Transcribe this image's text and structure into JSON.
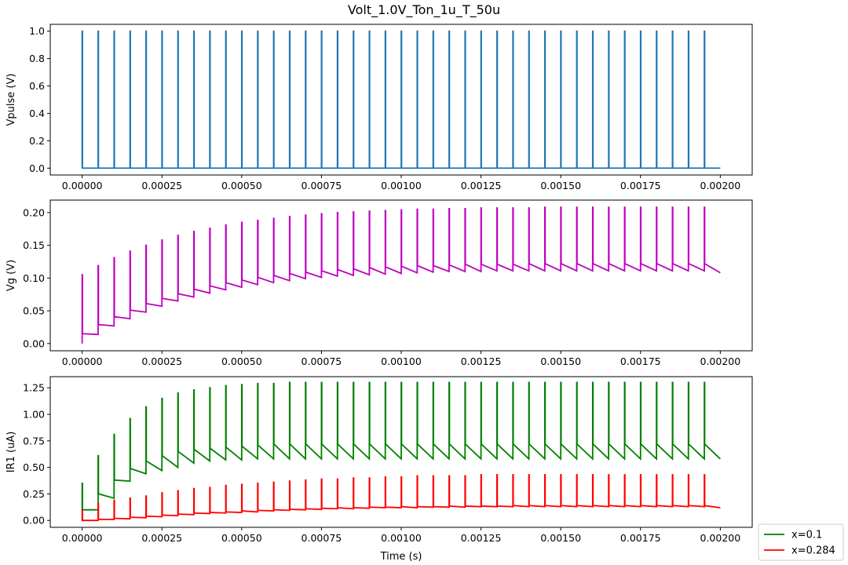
{
  "chart_data": {
    "title": "Volt_1.0V_Ton_1u_T_50u",
    "type": "line",
    "pulse_period": 5e-05,
    "pulse_width": 1e-06,
    "t_end": 0.002,
    "x_ticks": [
      "0.00000",
      "0.00025",
      "0.00050",
      "0.00075",
      "0.00100",
      "0.00125",
      "0.00150",
      "0.00175",
      "0.00200"
    ],
    "x_tick_values": [
      0,
      0.00025,
      0.0005,
      0.00075,
      0.001,
      0.00125,
      0.0015,
      0.00175,
      0.002
    ],
    "xlabel": "Time (s)",
    "xlim": [
      -0.0001,
      0.0021
    ],
    "panels": [
      {
        "ylabel": "Vpulse (V)",
        "ylim": [
          -0.05,
          1.05
        ],
        "y_ticks": [
          "0.0",
          "0.2",
          "0.4",
          "0.6",
          "0.8",
          "1.0"
        ],
        "y_tick_values": [
          0,
          0.2,
          0.4,
          0.6,
          0.8,
          1.0
        ],
        "series": [
          {
            "color": "#1f77b4",
            "kind": "pulse",
            "low": 0.0,
            "high": 1.0,
            "pulse_count": 40
          }
        ]
      },
      {
        "ylabel": "Vg (V)",
        "ylim": [
          -0.011,
          0.219
        ],
        "y_ticks": [
          "0.00",
          "0.05",
          "0.10",
          "0.15",
          "0.20"
        ],
        "y_tick_values": [
          0,
          0.05,
          0.1,
          0.15,
          0.2
        ],
        "series": [
          {
            "color": "#bf00bf",
            "kind": "sawtooth",
            "peaks": [
              0.105,
              0.119,
              0.131,
              0.141,
              0.15,
              0.158,
              0.165,
              0.171,
              0.176,
              0.181,
              0.185,
              0.188,
              0.191,
              0.194,
              0.196,
              0.198,
              0.2,
              0.201,
              0.202,
              0.203,
              0.204,
              0.205,
              0.205,
              0.206,
              0.206,
              0.207,
              0.207,
              0.207,
              0.207,
              0.208,
              0.208,
              0.208,
              0.208,
              0.208,
              0.208,
              0.208,
              0.208,
              0.208,
              0.208,
              0.208
            ],
            "after_drop": [
              0.015,
              0.029,
              0.041,
              0.051,
              0.061,
              0.069,
              0.076,
              0.083,
              0.088,
              0.093,
              0.097,
              0.101,
              0.104,
              0.107,
              0.109,
              0.111,
              0.113,
              0.114,
              0.116,
              0.117,
              0.118,
              0.119,
              0.119,
              0.12,
              0.121,
              0.121,
              0.121,
              0.121,
              0.122,
              0.122,
              0.122,
              0.122,
              0.122,
              0.122,
              0.122,
              0.122,
              0.122,
              0.122,
              0.122,
              0.122
            ],
            "before_next": [
              0.014,
              0.027,
              0.038,
              0.048,
              0.057,
              0.065,
              0.071,
              0.077,
              0.082,
              0.086,
              0.09,
              0.093,
              0.096,
              0.099,
              0.101,
              0.103,
              0.104,
              0.105,
              0.106,
              0.107,
              0.108,
              0.109,
              0.11,
              0.11,
              0.11,
              0.111,
              0.111,
              0.111,
              0.111,
              0.111,
              0.111,
              0.111,
              0.111,
              0.111,
              0.111,
              0.111,
              0.111,
              0.111,
              0.111,
              0.108
            ]
          }
        ]
      },
      {
        "ylabel": "IR1 (uA)",
        "ylim": [
          -0.065,
          1.355
        ],
        "y_ticks": [
          "0.00",
          "0.25",
          "0.50",
          "0.75",
          "1.00",
          "1.25"
        ],
        "y_tick_values": [
          0,
          0.25,
          0.5,
          0.75,
          1.0,
          1.25
        ],
        "series": [
          {
            "name": "x=0.1",
            "color": "#008000",
            "kind": "sawtooth",
            "peaks": [
              0.35,
              0.61,
              0.81,
              0.96,
              1.07,
              1.15,
              1.2,
              1.23,
              1.25,
              1.27,
              1.28,
              1.29,
              1.29,
              1.3,
              1.3,
              1.3,
              1.3,
              1.3,
              1.3,
              1.3,
              1.3,
              1.3,
              1.3,
              1.3,
              1.3,
              1.3,
              1.3,
              1.3,
              1.3,
              1.3,
              1.3,
              1.3,
              1.3,
              1.3,
              1.3,
              1.3,
              1.3,
              1.3,
              1.3,
              1.3
            ],
            "after_drop": [
              0.1,
              0.25,
              0.38,
              0.49,
              0.56,
              0.61,
              0.65,
              0.67,
              0.68,
              0.69,
              0.7,
              0.71,
              0.72,
              0.72,
              0.72,
              0.72,
              0.72,
              0.72,
              0.72,
              0.72,
              0.72,
              0.72,
              0.72,
              0.72,
              0.72,
              0.72,
              0.72,
              0.72,
              0.72,
              0.72,
              0.72,
              0.72,
              0.72,
              0.72,
              0.72,
              0.72,
              0.72,
              0.72,
              0.72,
              0.72
            ],
            "before_next": [
              0.1,
              0.21,
              0.37,
              0.44,
              0.47,
              0.5,
              0.54,
              0.56,
              0.57,
              0.57,
              0.58,
              0.58,
              0.58,
              0.58,
              0.58,
              0.58,
              0.58,
              0.58,
              0.58,
              0.58,
              0.58,
              0.58,
              0.58,
              0.58,
              0.58,
              0.58,
              0.58,
              0.58,
              0.58,
              0.58,
              0.58,
              0.58,
              0.58,
              0.58,
              0.58,
              0.58,
              0.58,
              0.58,
              0.58,
              0.58
            ]
          },
          {
            "name": "x=0.284",
            "color": "#ff0000",
            "kind": "sawtooth",
            "peaks": [
              0.1,
              0.16,
              0.19,
              0.21,
              0.23,
              0.26,
              0.28,
              0.3,
              0.31,
              0.33,
              0.34,
              0.35,
              0.36,
              0.37,
              0.38,
              0.39,
              0.39,
              0.4,
              0.4,
              0.41,
              0.41,
              0.42,
              0.42,
              0.42,
              0.42,
              0.43,
              0.43,
              0.43,
              0.43,
              0.43,
              0.43,
              0.43,
              0.43,
              0.43,
              0.43,
              0.43,
              0.43,
              0.43,
              0.43,
              0.43
            ],
            "after_drop": [
              0.0,
              0.01,
              0.02,
              0.03,
              0.04,
              0.05,
              0.06,
              0.07,
              0.075,
              0.08,
              0.09,
              0.095,
              0.1,
              0.105,
              0.11,
              0.115,
              0.12,
              0.12,
              0.125,
              0.125,
              0.13,
              0.13,
              0.13,
              0.135,
              0.135,
              0.135,
              0.135,
              0.14,
              0.14,
              0.14,
              0.14,
              0.14,
              0.14,
              0.14,
              0.14,
              0.14,
              0.14,
              0.14,
              0.14,
              0.14
            ],
            "before_next": [
              0.0,
              0.01,
              0.015,
              0.025,
              0.035,
              0.045,
              0.055,
              0.065,
              0.07,
              0.075,
              0.08,
              0.09,
              0.095,
              0.1,
              0.105,
              0.11,
              0.11,
              0.115,
              0.12,
              0.12,
              0.12,
              0.125,
              0.125,
              0.125,
              0.13,
              0.13,
              0.13,
              0.13,
              0.13,
              0.13,
              0.13,
              0.13,
              0.13,
              0.13,
              0.13,
              0.13,
              0.13,
              0.13,
              0.13,
              0.12
            ]
          }
        ]
      }
    ],
    "legend": {
      "placement": "lower-right, outside plot area",
      "entries": [
        "x=0.1",
        "x=0.284"
      ]
    }
  }
}
